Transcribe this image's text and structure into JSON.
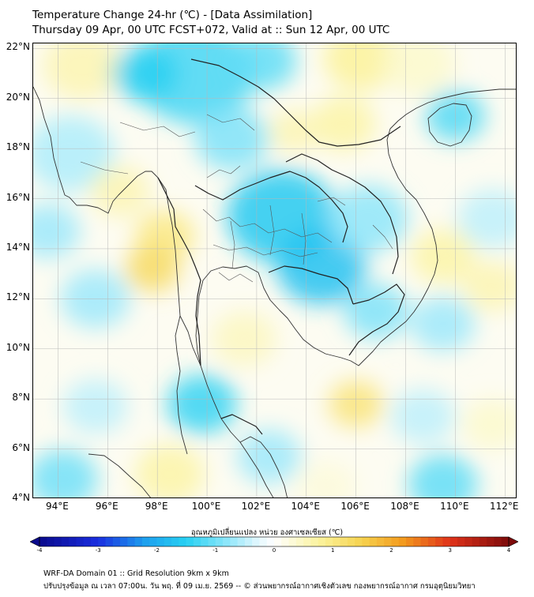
{
  "title": {
    "line1": "Temperature Change 24-hr (℃) - [Data Assimilation]",
    "line2": "Thursday 09 Apr, 00 UTC FCST+072, Valid at :: Sun 12 Apr, 00 UTC"
  },
  "map": {
    "lon_range": [
      93,
      112.5
    ],
    "lat_range": [
      4,
      22.2
    ],
    "lat_labels": [
      {
        "value": 22,
        "text": "22°N"
      },
      {
        "value": 20,
        "text": "20°N"
      },
      {
        "value": 18,
        "text": "18°N"
      },
      {
        "value": 16,
        "text": "16°N"
      },
      {
        "value": 14,
        "text": "14°N"
      },
      {
        "value": 12,
        "text": "12°N"
      },
      {
        "value": 10,
        "text": "10°N"
      },
      {
        "value": 8,
        "text": "8°N"
      },
      {
        "value": 6,
        "text": "6°N"
      },
      {
        "value": 4,
        "text": "4°N"
      }
    ],
    "lon_labels": [
      {
        "value": 94,
        "text": "94°E"
      },
      {
        "value": 96,
        "text": "96°E"
      },
      {
        "value": 98,
        "text": "98°E"
      },
      {
        "value": 100,
        "text": "100°E"
      },
      {
        "value": 102,
        "text": "102°E"
      },
      {
        "value": 104,
        "text": "104°E"
      },
      {
        "value": 106,
        "text": "106°E"
      },
      {
        "value": 108,
        "text": "108°E"
      },
      {
        "value": 110,
        "text": "110°E"
      },
      {
        "value": 112,
        "text": "112°E"
      }
    ],
    "field_blobs": [
      {
        "lon": 95.0,
        "lat": 21.3,
        "val": 0.6,
        "r": 1.6
      },
      {
        "lon": 99.5,
        "lat": 21.0,
        "val": -1.3,
        "r": 2.4
      },
      {
        "lon": 97.5,
        "lat": 21.0,
        "val": -1.5,
        "r": 1.3
      },
      {
        "lon": 102.2,
        "lat": 21.5,
        "val": -1.1,
        "r": 1.4
      },
      {
        "lon": 106.2,
        "lat": 21.6,
        "val": 0.8,
        "r": 1.5
      },
      {
        "lon": 108.5,
        "lat": 21.4,
        "val": 0.4,
        "r": 1.5
      },
      {
        "lon": 110.0,
        "lat": 19.3,
        "val": -1.2,
        "r": 1.2
      },
      {
        "lon": 105.5,
        "lat": 19.0,
        "val": 0.7,
        "r": 1.3
      },
      {
        "lon": 103.5,
        "lat": 18.7,
        "val": 0.6,
        "r": 1.0
      },
      {
        "lon": 101.0,
        "lat": 18.4,
        "val": -0.9,
        "r": 1.5
      },
      {
        "lon": 94.5,
        "lat": 17.8,
        "val": -0.6,
        "r": 1.8
      },
      {
        "lon": 96.5,
        "lat": 16.3,
        "val": 0.6,
        "r": 1.2
      },
      {
        "lon": 98.3,
        "lat": 14.5,
        "val": 1.0,
        "r": 1.2
      },
      {
        "lon": 97.8,
        "lat": 13.2,
        "val": 1.3,
        "r": 1.1
      },
      {
        "lon": 103.0,
        "lat": 15.3,
        "val": -1.6,
        "r": 2.2
      },
      {
        "lon": 104.6,
        "lat": 13.3,
        "val": -1.7,
        "r": 1.8
      },
      {
        "lon": 106.5,
        "lat": 15.2,
        "val": -0.8,
        "r": 1.6
      },
      {
        "lon": 109.5,
        "lat": 13.7,
        "val": 0.7,
        "r": 1.3
      },
      {
        "lon": 111.5,
        "lat": 15.2,
        "val": -0.5,
        "r": 1.4
      },
      {
        "lon": 109.5,
        "lat": 11.0,
        "val": -0.7,
        "r": 1.3
      },
      {
        "lon": 111.5,
        "lat": 12.5,
        "val": 0.6,
        "r": 1.2
      },
      {
        "lon": 95.5,
        "lat": 12.0,
        "val": -0.7,
        "r": 1.4
      },
      {
        "lon": 99.8,
        "lat": 7.8,
        "val": -1.4,
        "r": 1.4
      },
      {
        "lon": 101.5,
        "lat": 10.4,
        "val": 0.5,
        "r": 1.3
      },
      {
        "lon": 106.8,
        "lat": 11.5,
        "val": -0.9,
        "r": 1.3
      },
      {
        "lon": 106.0,
        "lat": 7.8,
        "val": 1.1,
        "r": 1.1
      },
      {
        "lon": 108.7,
        "lat": 7.3,
        "val": -0.5,
        "r": 1.3
      },
      {
        "lon": 109.5,
        "lat": 4.6,
        "val": -1.1,
        "r": 1.4
      },
      {
        "lon": 94.2,
        "lat": 4.8,
        "val": -1.0,
        "r": 1.4
      },
      {
        "lon": 95.5,
        "lat": 7.7,
        "val": -0.5,
        "r": 1.3
      },
      {
        "lon": 98.5,
        "lat": 5.0,
        "val": 0.7,
        "r": 1.4
      },
      {
        "lon": 102.5,
        "lat": 5.7,
        "val": -0.7,
        "r": 1.3
      },
      {
        "lon": 104.8,
        "lat": 4.5,
        "val": 0.3,
        "r": 1.2
      },
      {
        "lon": 111.5,
        "lat": 7.0,
        "val": 0.4,
        "r": 1.2
      },
      {
        "lon": 93.6,
        "lat": 14.7,
        "val": -0.7,
        "r": 1.3
      }
    ]
  },
  "colorbar": {
    "title": "อุณหภูมิเปลี่ยนแปลง หน่วย องศาเซลเซียส (℃)",
    "range": [
      -4,
      4
    ],
    "ticks": [
      {
        "value": -4,
        "text": "-4"
      },
      {
        "value": -3,
        "text": "-3"
      },
      {
        "value": -2,
        "text": "-2"
      },
      {
        "value": -1,
        "text": "-1"
      },
      {
        "value": 0,
        "text": "0"
      },
      {
        "value": 1,
        "text": "1"
      },
      {
        "value": 2,
        "text": "2"
      },
      {
        "value": 3,
        "text": "3"
      },
      {
        "value": 4,
        "text": "4"
      }
    ],
    "stops": [
      {
        "v": -4.0,
        "c": "#0a0a8c"
      },
      {
        "v": -3.0,
        "c": "#1a2ee0"
      },
      {
        "v": -2.2,
        "c": "#1ea0ee"
      },
      {
        "v": -1.5,
        "c": "#27d0f2"
      },
      {
        "v": -0.8,
        "c": "#8ee6fa"
      },
      {
        "v": -0.25,
        "c": "#e6f8fe"
      },
      {
        "v": 0.0,
        "c": "#ffffff"
      },
      {
        "v": 0.25,
        "c": "#fdfbe0"
      },
      {
        "v": 0.8,
        "c": "#fbf29a"
      },
      {
        "v": 1.5,
        "c": "#f6d24e"
      },
      {
        "v": 2.2,
        "c": "#f39a1e"
      },
      {
        "v": 3.0,
        "c": "#e0321a"
      },
      {
        "v": 4.0,
        "c": "#7d0a0a"
      }
    ]
  },
  "footer": {
    "line1": "WRF-DA Domain 01 :: Grid Resolution 9km x 9km",
    "line2": "ปรับปรุงข้อมูล ณ เวลา 07:00น. วัน พฤ. ที่ 09 เม.ย. 2569 -- © ส่วนพยากรณ์อากาศเชิงตัวเลข กองพยากรณ์อากาศ กรมอุตุนิยมวิทยา"
  },
  "colors": {
    "border_line": "#000000",
    "country_line": "#333333",
    "province_line": "#555555",
    "grid_line": "#b8b8b8"
  }
}
